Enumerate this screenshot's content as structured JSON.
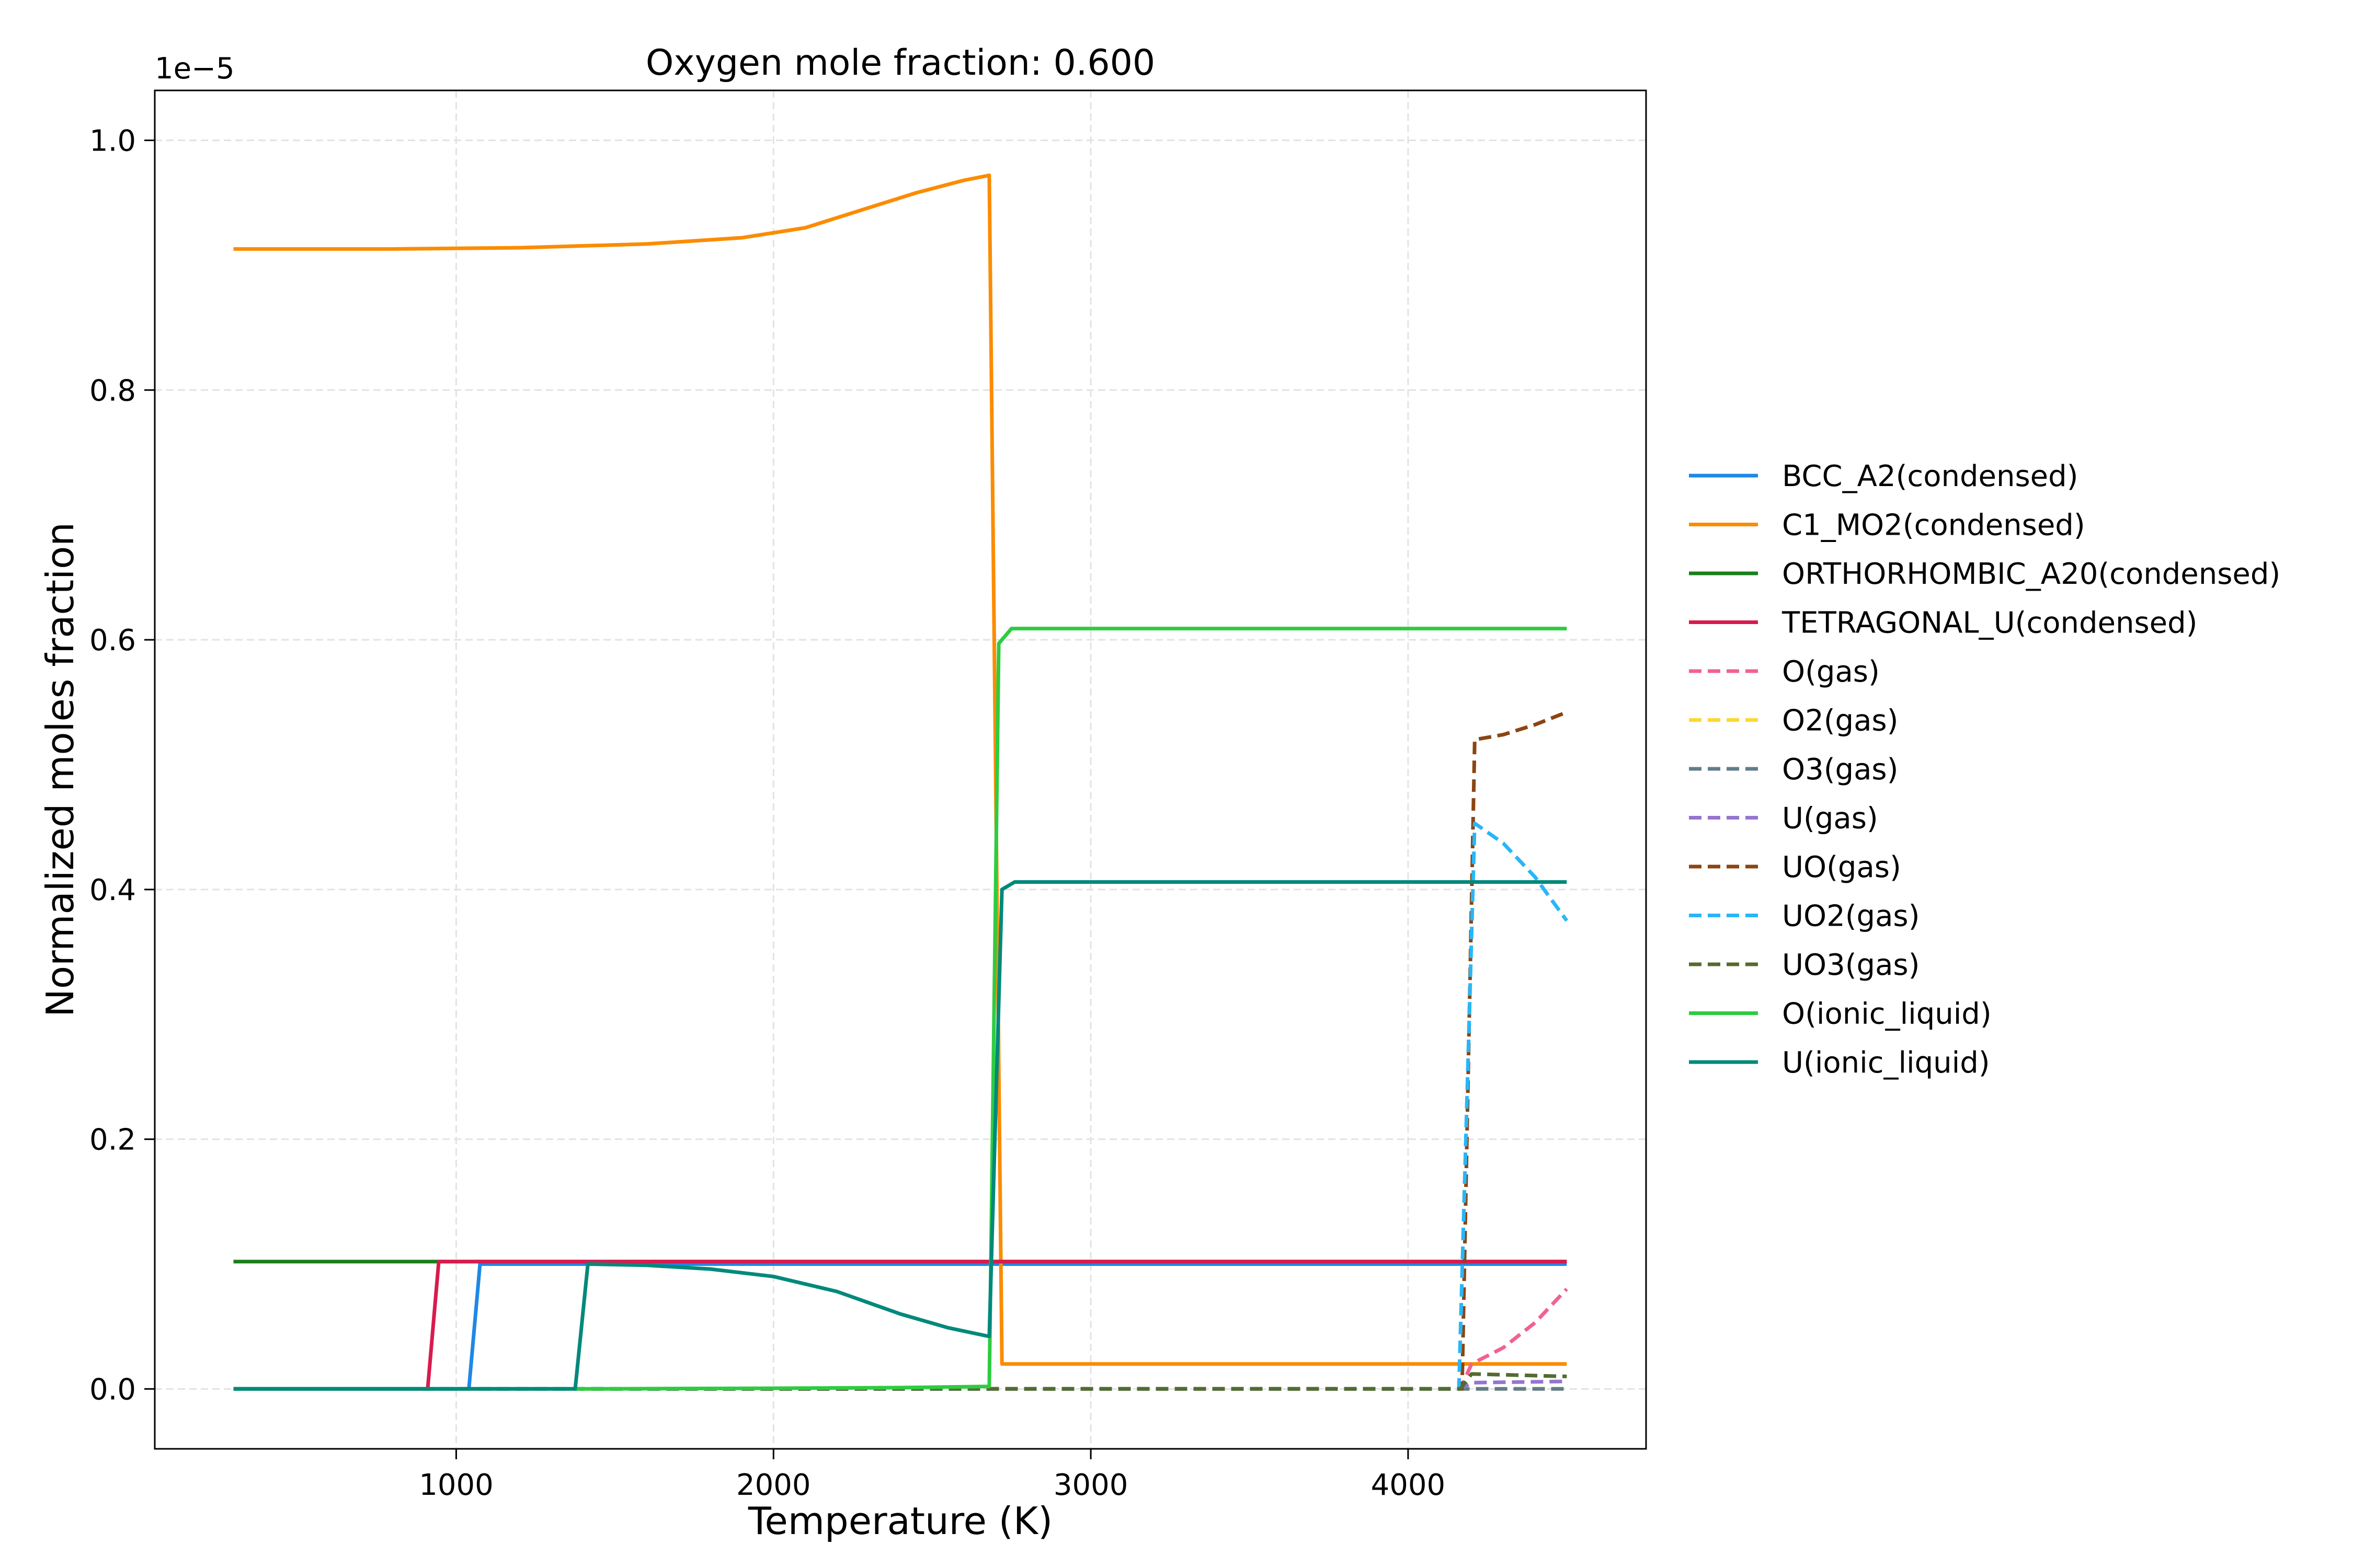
{
  "chart_data": {
    "type": "line",
    "title": "Oxygen mole fraction: 0.600",
    "xlabel": "Temperature (K)",
    "ylabel": "Normalized moles fraction",
    "y_offset_text": "1e−5",
    "y_scale_factor": 1e-05,
    "xlim": [
      50,
      4750
    ],
    "ylim": [
      -0.048,
      1.04
    ],
    "x_ticks": [
      1000,
      2000,
      3000,
      4000
    ],
    "x_tick_labels": [
      "1000",
      "2000",
      "3000",
      "4000"
    ],
    "y_ticks": [
      0.0,
      0.2,
      0.4,
      0.6,
      0.8,
      1.0
    ],
    "y_tick_labels": [
      "0.0",
      "0.2",
      "0.4",
      "0.6",
      "0.8",
      "1.0"
    ],
    "grid": true,
    "legend_position": "right, outside plot",
    "series": [
      {
        "name": "BCC_A2(condensed)",
        "color": "#1e88e5",
        "style": "solid",
        "points": [
          [
            298,
            0
          ],
          [
            1040,
            0
          ],
          [
            1075,
            0.1
          ],
          [
            4500,
            0.1
          ]
        ]
      },
      {
        "name": "C1_MO2(condensed)",
        "color": "#fb8c00",
        "style": "solid",
        "points": [
          [
            298,
            0.913
          ],
          [
            800,
            0.913
          ],
          [
            1200,
            0.914
          ],
          [
            1600,
            0.917
          ],
          [
            1900,
            0.922
          ],
          [
            2100,
            0.93
          ],
          [
            2300,
            0.946
          ],
          [
            2450,
            0.958
          ],
          [
            2600,
            0.968
          ],
          [
            2680,
            0.972
          ],
          [
            2720,
            0.02
          ],
          [
            4500,
            0.02
          ]
        ]
      },
      {
        "name": "ORTHORHOMBIC_A20(condensed)",
        "color": "#1b7f1b",
        "style": "solid",
        "points": [
          [
            298,
            0.102
          ],
          [
            4500,
            0.102
          ]
        ]
      },
      {
        "name": "TETRAGONAL_U(condensed)",
        "color": "#d81b4f",
        "style": "solid",
        "points": [
          [
            298,
            0
          ],
          [
            910,
            0
          ],
          [
            945,
            0.102
          ],
          [
            4500,
            0.102
          ]
        ]
      },
      {
        "name": "O(gas)",
        "color": "#f06292",
        "style": "dashed",
        "points": [
          [
            298,
            0
          ],
          [
            4165,
            0
          ],
          [
            4200,
            0.02
          ],
          [
            4300,
            0.033
          ],
          [
            4400,
            0.053
          ],
          [
            4500,
            0.08
          ]
        ]
      },
      {
        "name": "O2(gas)",
        "color": "#fdd835",
        "style": "dashed",
        "points": [
          [
            298,
            0
          ],
          [
            4500,
            0
          ]
        ]
      },
      {
        "name": "O3(gas)",
        "color": "#607d8b",
        "style": "dashed",
        "points": [
          [
            298,
            0
          ],
          [
            4500,
            0
          ]
        ]
      },
      {
        "name": "U(gas)",
        "color": "#9575cd",
        "style": "dashed",
        "points": [
          [
            298,
            0
          ],
          [
            4165,
            0
          ],
          [
            4200,
            0.005
          ],
          [
            4500,
            0.006
          ]
        ]
      },
      {
        "name": "UO(gas)",
        "color": "#8b4513",
        "style": "dashed",
        "points": [
          [
            298,
            0
          ],
          [
            4170,
            0
          ],
          [
            4210,
            0.52
          ],
          [
            4300,
            0.524
          ],
          [
            4400,
            0.532
          ],
          [
            4500,
            0.542
          ]
        ]
      },
      {
        "name": "UO2(gas)",
        "color": "#29b6f6",
        "style": "dashed",
        "points": [
          [
            298,
            0
          ],
          [
            4160,
            0
          ],
          [
            4210,
            0.453
          ],
          [
            4300,
            0.437
          ],
          [
            4400,
            0.41
          ],
          [
            4500,
            0.375
          ]
        ]
      },
      {
        "name": "UO3(gas)",
        "color": "#556b2f",
        "style": "dashed",
        "points": [
          [
            298,
            0
          ],
          [
            4165,
            0
          ],
          [
            4200,
            0.012
          ],
          [
            4500,
            0.01
          ]
        ]
      },
      {
        "name": "O(ionic_liquid)",
        "color": "#2ecc40",
        "style": "solid",
        "points": [
          [
            298,
            0
          ],
          [
            1400,
            0
          ],
          [
            2000,
            0.0005
          ],
          [
            2400,
            0.001
          ],
          [
            2680,
            0.002
          ],
          [
            2710,
            0.597
          ],
          [
            2750,
            0.609
          ],
          [
            4500,
            0.609
          ]
        ]
      },
      {
        "name": "U(ionic_liquid)",
        "color": "#00897b",
        "style": "solid",
        "points": [
          [
            298,
            0
          ],
          [
            1375,
            0
          ],
          [
            1415,
            0.1
          ],
          [
            1600,
            0.099
          ],
          [
            1800,
            0.096
          ],
          [
            2000,
            0.09
          ],
          [
            2200,
            0.078
          ],
          [
            2400,
            0.06
          ],
          [
            2550,
            0.049
          ],
          [
            2680,
            0.042
          ],
          [
            2720,
            0.4
          ],
          [
            2760,
            0.406
          ],
          [
            4500,
            0.406
          ]
        ]
      }
    ]
  }
}
